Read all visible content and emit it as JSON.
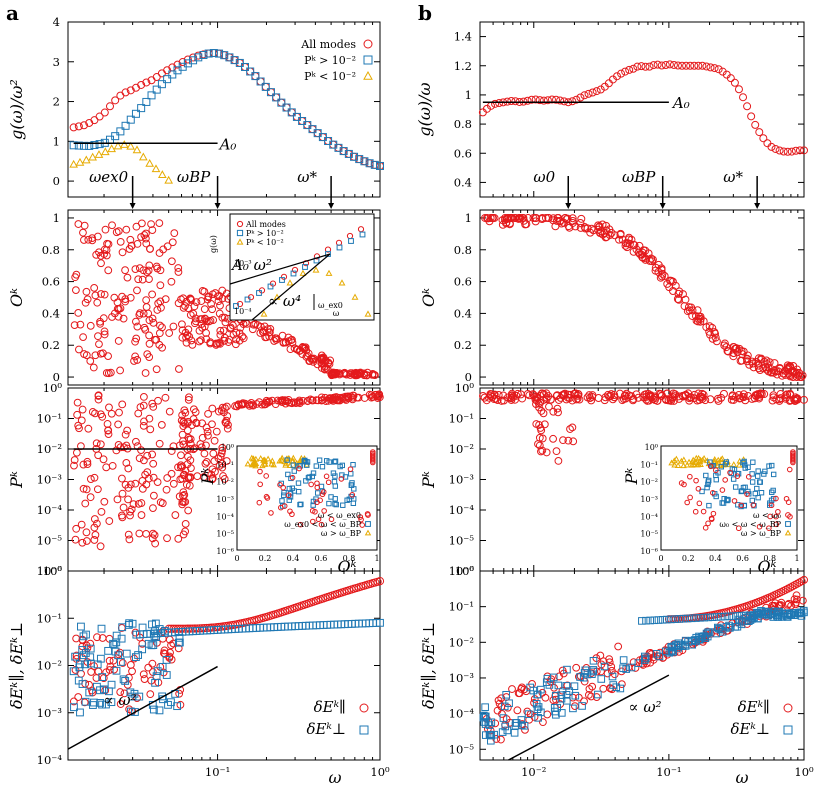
{
  "figure": {
    "label_a": "a",
    "label_b": "b"
  },
  "colors": {
    "red": "#e41a1c",
    "blue": "#1f78b4",
    "yellow": "#e6ab02",
    "line": "#000000"
  },
  "chart_data": [
    {
      "id": "a1",
      "type": "scatter",
      "xscale": "log",
      "xlim": [
        0.012,
        1
      ],
      "ylim": [
        -0.4,
        4
      ],
      "ylabel": "g(ω)/ω²",
      "xlabel": "",
      "yticks": [
        0,
        1,
        2,
        3,
        4
      ],
      "yticklabels": [
        "0",
        "1",
        "2",
        "3",
        "4"
      ],
      "legend_position": "top-right",
      "legend": [
        "All modes",
        "Pᵏ > 10⁻²",
        "Pᵏ < 10⁻²"
      ],
      "series": [
        {
          "name": "All modes",
          "marker": "circle",
          "color": "red",
          "x": [
            0.013,
            0.015,
            0.017,
            0.02,
            0.023,
            0.026,
            0.03,
            0.035,
            0.04,
            0.047,
            0.055,
            0.065,
            0.075,
            0.085,
            0.095,
            0.105,
            0.12,
            0.14,
            0.17,
            0.2,
            0.25,
            0.3,
            0.4,
            0.5,
            0.6,
            0.7,
            0.8,
            0.9,
            1.0
          ],
          "y": [
            1.35,
            1.4,
            1.5,
            1.7,
            2.0,
            2.2,
            2.3,
            2.45,
            2.55,
            2.75,
            2.9,
            3.05,
            3.15,
            3.2,
            3.22,
            3.2,
            3.1,
            2.95,
            2.65,
            2.35,
            1.95,
            1.65,
            1.25,
            0.95,
            0.75,
            0.6,
            0.5,
            0.42,
            0.38
          ]
        },
        {
          "name": "Pᵏ > 10⁻²",
          "marker": "square",
          "color": "blue",
          "x": [
            0.013,
            0.016,
            0.02,
            0.023,
            0.026,
            0.03,
            0.035,
            0.04,
            0.047,
            0.055,
            0.065,
            0.075,
            0.085,
            0.095,
            0.105,
            0.12,
            0.14,
            0.17,
            0.2,
            0.25,
            0.3,
            0.4,
            0.5,
            0.6,
            0.7,
            0.8,
            0.9,
            1.0
          ],
          "y": [
            0.9,
            0.88,
            0.95,
            1.1,
            1.3,
            1.6,
            1.9,
            2.2,
            2.5,
            2.75,
            2.95,
            3.1,
            3.2,
            3.22,
            3.2,
            3.1,
            2.95,
            2.65,
            2.35,
            1.95,
            1.65,
            1.25,
            0.95,
            0.75,
            0.6,
            0.5,
            0.42,
            0.38
          ]
        },
        {
          "name": "Pᵏ < 10⁻²",
          "marker": "triangle",
          "color": "yellow",
          "x": [
            0.013,
            0.015,
            0.017,
            0.019,
            0.021,
            0.023,
            0.025,
            0.027,
            0.029,
            0.032,
            0.035,
            0.038,
            0.042,
            0.046,
            0.05
          ],
          "y": [
            0.42,
            0.5,
            0.6,
            0.68,
            0.76,
            0.84,
            0.9,
            0.92,
            0.88,
            0.78,
            0.6,
            0.45,
            0.3,
            0.15,
            0.02
          ]
        }
      ],
      "lines": [
        {
          "x": [
            0.013,
            0.1
          ],
          "y": [
            0.95,
            0.95
          ]
        }
      ],
      "annotations": [
        {
          "text": "A₀",
          "x": 0.12,
          "y": 0.95
        },
        {
          "text": "ω_ex0",
          "x": 0.03,
          "arrow_down": true
        },
        {
          "text": "ω_BP",
          "x": 0.1,
          "arrow_down": true
        },
        {
          "text": "ω_*",
          "x": 0.5,
          "arrow_down": true
        }
      ]
    },
    {
      "id": "a2",
      "type": "scatter",
      "xscale": "log",
      "xlim": [
        0.012,
        1
      ],
      "ylim": [
        -0.05,
        1.05
      ],
      "ylabel": "Oᵏ",
      "yticks": [
        0,
        0.2,
        0.4,
        0.6,
        0.8,
        1
      ],
      "yticklabels": [
        "0",
        "0.2",
        "0.4",
        "0.6",
        "0.8",
        "1"
      ],
      "series": [
        {
          "name": "",
          "marker": "circle",
          "color": "red",
          "trend": "O_a"
        }
      ],
      "inset": {
        "legend": [
          "All modes",
          "Pᵏ > 10⁻²",
          "Pᵏ < 10⁻²"
        ],
        "ylabel": "g(ω)",
        "xlabel": "ω",
        "yticklabels": [
          "10⁻³",
          "10⁻⁴"
        ],
        "annotations": [
          "A₀ ω²",
          "∝ ω⁴",
          "ω_ex0"
        ]
      }
    },
    {
      "id": "a3",
      "type": "scatter",
      "xscale": "log",
      "yscale": "log",
      "xlim": [
        0.012,
        1
      ],
      "ylim": [
        1e-06,
        1
      ],
      "ylabel": "Pᵏ",
      "yticklabels": [
        "10⁰",
        "10⁻¹",
        "10⁻²",
        "10⁻³",
        "10⁻⁴",
        "10⁻⁵",
        "10⁻⁶"
      ],
      "series": [
        {
          "name": "",
          "marker": "circle",
          "color": "red",
          "trend": "P_a"
        }
      ],
      "lines": [
        {
          "x": [
            0.013,
            0.1
          ],
          "y": [
            0.01,
            0.01
          ]
        }
      ],
      "inset": {
        "xlabel": "Oᵏ",
        "ylabel": "Pᵏ",
        "xticklabels": [
          "0",
          "0.2",
          "0.4",
          "0.6",
          "0.8",
          "1"
        ],
        "yticklabels": [
          "10⁰",
          "10⁻¹",
          "10⁻²",
          "10⁻³",
          "10⁻⁴",
          "10⁻⁵",
          "10⁻⁶"
        ],
        "legend": [
          "ω < ω_ex0",
          "ω_ex0 < ω < ω_BP",
          "ω > ω_BP"
        ]
      }
    },
    {
      "id": "a4",
      "type": "scatter",
      "xscale": "log",
      "yscale": "log",
      "xlim": [
        0.012,
        1
      ],
      "ylim": [
        0.0001,
        1
      ],
      "ylabel": "δEᵏ∥, δEᵏ⊥",
      "xlabel": "ω",
      "xticklabels": [
        "10⁻¹",
        "10⁰"
      ],
      "yticklabels": [
        "10⁰",
        "10⁻¹",
        "10⁻²",
        "10⁻³",
        "10⁻⁴"
      ],
      "legend": [
        "δEᵏ∥",
        "δEᵏ⊥"
      ],
      "legend_position": "bottom-right",
      "series": [
        {
          "name": "δEᵏ∥",
          "marker": "circle",
          "color": "red",
          "trend": "Epar_a"
        },
        {
          "name": "δEᵏ⊥",
          "marker": "square",
          "color": "blue",
          "trend": "Eperp_a"
        }
      ],
      "lines": [
        {
          "x": [
            0.012,
            0.1
          ],
          "y": [
            0.00017,
            0.0095
          ]
        }
      ],
      "annotations": [
        {
          "text": "∝ ω²"
        }
      ]
    },
    {
      "id": "b1",
      "type": "scatter",
      "xscale": "log",
      "xlim": [
        0.004,
        1
      ],
      "ylim": [
        0.3,
        1.5
      ],
      "ylabel": "g(ω)/ω",
      "yticklabels": [
        "0.4",
        "0.6",
        "0.8",
        "1",
        "1.2",
        "1.4"
      ],
      "series": [
        {
          "name": "",
          "marker": "circle",
          "color": "red",
          "x": [
            0.0042,
            0.0047,
            0.0052,
            0.006,
            0.007,
            0.008,
            0.009,
            0.01,
            0.012,
            0.014,
            0.016,
            0.018,
            0.02,
            0.024,
            0.028,
            0.032,
            0.036,
            0.04,
            0.045,
            0.05,
            0.055,
            0.06,
            0.07,
            0.08,
            0.09,
            0.1,
            0.12,
            0.14,
            0.16,
            0.18,
            0.2,
            0.23,
            0.26,
            0.3,
            0.34,
            0.38,
            0.42,
            0.47,
            0.52,
            0.58,
            0.65,
            0.72,
            0.8,
            0.9,
            1.0
          ],
          "y": [
            0.88,
            0.92,
            0.94,
            0.95,
            0.96,
            0.95,
            0.96,
            0.97,
            0.96,
            0.97,
            0.96,
            0.95,
            0.96,
            1.0,
            1.02,
            1.04,
            1.08,
            1.12,
            1.15,
            1.17,
            1.18,
            1.2,
            1.19,
            1.21,
            1.2,
            1.21,
            1.2,
            1.2,
            1.2,
            1.2,
            1.19,
            1.18,
            1.15,
            1.1,
            1.02,
            0.92,
            0.82,
            0.74,
            0.68,
            0.64,
            0.62,
            0.61,
            0.61,
            0.62,
            0.62
          ]
        }
      ],
      "lines": [
        {
          "x": [
            0.0042,
            0.1
          ],
          "y": [
            0.95,
            0.95
          ]
        }
      ],
      "annotations": [
        {
          "text": "A₀"
        },
        {
          "text": "ω₀",
          "x": 0.018,
          "arrow_down": true
        },
        {
          "text": "ω_BP",
          "x": 0.09,
          "arrow_down": true
        },
        {
          "text": "ω_*",
          "x": 0.45,
          "arrow_down": true
        }
      ]
    },
    {
      "id": "b2",
      "type": "scatter",
      "xscale": "log",
      "xlim": [
        0.004,
        1
      ],
      "ylim": [
        -0.05,
        1.05
      ],
      "ylabel": "Oᵏ",
      "yticklabels": [
        "0",
        "0.2",
        "0.4",
        "0.6",
        "0.8",
        "1"
      ],
      "series": [
        {
          "name": "",
          "marker": "circle",
          "color": "red",
          "trend": "O_b"
        }
      ]
    },
    {
      "id": "b3",
      "type": "scatter",
      "xscale": "log",
      "yscale": "log",
      "xlim": [
        0.004,
        1
      ],
      "ylim": [
        1e-06,
        1
      ],
      "ylabel": "Pᵏ",
      "yticklabels": [
        "10⁰",
        "10⁻¹",
        "10⁻²",
        "10⁻³",
        "10⁻⁴",
        "10⁻⁵",
        "10⁻⁶"
      ],
      "series": [
        {
          "name": "",
          "marker": "circle",
          "color": "red",
          "trend": "P_b"
        }
      ],
      "inset": {
        "xlabel": "Oᵏ",
        "ylabel": "Pᵏ",
        "xticklabels": [
          "0",
          "0.2",
          "0.4",
          "0.6",
          "0.8",
          "1"
        ],
        "yticklabels": [
          "10⁰",
          "10⁻¹",
          "10⁻²",
          "10⁻³",
          "10⁻⁴",
          "10⁻⁵",
          "10⁻⁶"
        ],
        "legend": [
          "ω < ω₀",
          "ω₀ < ω < ω_BP",
          "ω > ω_BP"
        ]
      }
    },
    {
      "id": "b4",
      "type": "scatter",
      "xscale": "log",
      "yscale": "log",
      "xlim": [
        0.004,
        1
      ],
      "ylim": [
        5e-06,
        1
      ],
      "ylabel": "δEᵏ∥, δEᵏ⊥",
      "xlabel": "ω",
      "xticklabels": [
        "10⁻²",
        "10⁻¹",
        "10⁰"
      ],
      "yticklabels": [
        "10⁰",
        "10⁻¹",
        "10⁻²",
        "10⁻³",
        "10⁻⁴",
        "10⁻⁵"
      ],
      "legend": [
        "δEᵏ∥",
        "δEᵏ⊥"
      ],
      "legend_position": "bottom-right",
      "series": [
        {
          "name": "δEᵏ∥",
          "marker": "circle",
          "color": "red",
          "trend": "Epar_b"
        },
        {
          "name": "δEᵏ⊥",
          "marker": "square",
          "color": "blue",
          "trend": "Eperp_b"
        }
      ],
      "lines": [
        {
          "x": [
            0.0065,
            0.1
          ],
          "y": [
            5e-06,
            0.0012
          ]
        }
      ],
      "annotations": [
        {
          "text": "∝ ω²"
        }
      ]
    }
  ]
}
